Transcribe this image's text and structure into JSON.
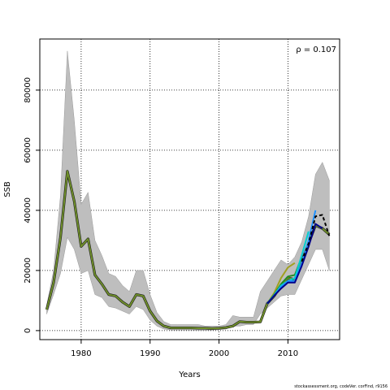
{
  "chart_data": {
    "type": "line",
    "title": "",
    "xlabel": "Years",
    "ylabel": "SSB",
    "annotation": "ρ = 0.107",
    "xlim": [
      1974,
      2017.5
    ],
    "ylim": [
      -3000,
      97000
    ],
    "xticks": [
      1980,
      1990,
      2000,
      2010
    ],
    "yticks": [
      0,
      20000,
      40000,
      60000,
      80000
    ],
    "grid": "dotted at ticks",
    "legend": "none",
    "colors": {
      "band": "#bebebe",
      "main": "#6f8f2a",
      "peel_dark": "#00008b",
      "peel_blue": "#1e90ff",
      "peel_cyan": "#00ced1",
      "peel_green": "#228b22",
      "peel_olive": "#a0a020",
      "terminal": "#000000"
    },
    "band": {
      "years": [
        1975,
        1976,
        1977,
        1978,
        1979,
        1980,
        1981,
        1982,
        1983,
        1984,
        1985,
        1986,
        1987,
        1988,
        1989,
        1990,
        1991,
        1992,
        1993,
        1994,
        1995,
        1996,
        1997,
        1998,
        1999,
        2000,
        2001,
        2002,
        2003,
        2004,
        2005,
        2006,
        2007,
        2008,
        2009,
        2010,
        2011,
        2012,
        2013,
        2014,
        2015,
        2016
      ],
      "upper": [
        8500,
        20000,
        45000,
        93000,
        70000,
        42000,
        46000,
        30000,
        25000,
        19000,
        18000,
        15000,
        13000,
        20000,
        20000,
        12000,
        6000,
        3000,
        2000,
        2000,
        2000,
        2000,
        2000,
        1500,
        1500,
        1500,
        2000,
        5000,
        4500,
        4500,
        4500,
        13000,
        16500,
        20000,
        23500,
        22000,
        24500,
        29500,
        38000,
        52000,
        56000,
        50000
      ],
      "lower": [
        5500,
        12000,
        19000,
        31000,
        27000,
        19000,
        20000,
        12000,
        11000,
        8000,
        7500,
        6500,
        5500,
        8000,
        7000,
        3500,
        1500,
        500,
        200,
        200,
        200,
        200,
        100,
        100,
        200,
        300,
        500,
        1500,
        1500,
        2000,
        2000,
        5500,
        7500,
        9500,
        11500,
        12000,
        12000,
        17000,
        22000,
        27000,
        27000,
        20000
      ]
    },
    "series": [
      {
        "color": "#6f8f2a",
        "x": [
          1975,
          1976,
          1977,
          1978,
          1979,
          1980,
          1981,
          1982,
          1983,
          1984,
          1985,
          1986,
          1987,
          1988,
          1989,
          1990,
          1991,
          1992,
          1993,
          1994,
          1995,
          1996,
          1997,
          1998,
          1999,
          2000,
          2001,
          2002,
          2003,
          2004,
          2005,
          2006,
          2007,
          2008,
          2009,
          2010,
          2011,
          2012,
          2013,
          2014,
          2015,
          2016
        ],
        "y": [
          7000,
          16000,
          31000,
          53000,
          43000,
          28000,
          30500,
          18500,
          15500,
          12000,
          11500,
          9500,
          8000,
          12000,
          11500,
          6500,
          3200,
          1500,
          900,
          900,
          900,
          900,
          800,
          800,
          700,
          800,
          1000,
          1500,
          3000,
          2800,
          2800,
          2900,
          9000,
          11500,
          15000,
          17500,
          17000,
          23000,
          29000,
          35000,
          34000,
          32000
        ]
      },
      {
        "color": "#a0a020",
        "x": [
          2007,
          2008,
          2009,
          2010,
          2011
        ],
        "y": [
          9000,
          12500,
          17500,
          21000,
          22500
        ]
      },
      {
        "color": "#228b22",
        "x": [
          2007,
          2008,
          2009,
          2010,
          2011,
          2012
        ],
        "y": [
          9000,
          12000,
          15500,
          18000,
          18500,
          24500
        ]
      },
      {
        "color": "#00ced1",
        "x": [
          2007,
          2008,
          2009,
          2010,
          2011,
          2012,
          2013
        ],
        "y": [
          9000,
          11800,
          15000,
          16500,
          17500,
          25000,
          33000
        ]
      },
      {
        "color": "#1e90ff",
        "x": [
          2007,
          2008,
          2009,
          2010,
          2011,
          2012,
          2013,
          2014
        ],
        "y": [
          9000,
          11700,
          14500,
          16500,
          16500,
          22500,
          30000,
          40000
        ]
      },
      {
        "color": "#00008b",
        "x": [
          2007,
          2008,
          2009,
          2010,
          2011,
          2012,
          2013,
          2014,
          2015
        ],
        "y": [
          9000,
          11600,
          14000,
          16000,
          16000,
          21500,
          28000,
          35500,
          34000
        ]
      },
      {
        "color": "#000000",
        "dashed": true,
        "x": [
          2012,
          2013,
          2014,
          2015,
          2016
        ],
        "y": [
          23000,
          29000,
          38000,
          38500,
          31500
        ]
      }
    ]
  },
  "footer": "stockassessment.org, codeVer. corFind, r9156"
}
